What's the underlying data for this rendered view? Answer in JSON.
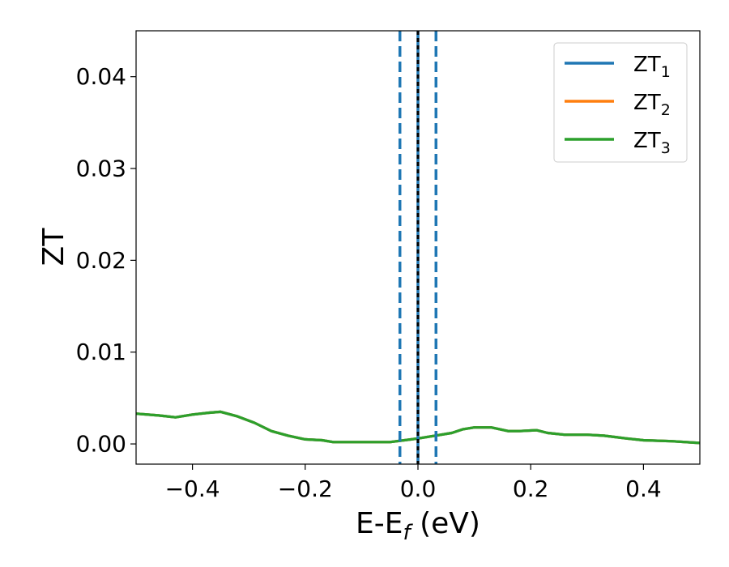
{
  "chart_data": {
    "type": "line",
    "xlabel": "E-E",
    "xlabel_sub": "f",
    "xlabel_unit": " (eV)",
    "ylabel": "ZT",
    "xlim": [
      -0.5,
      0.5
    ],
    "ylim": [
      -0.0022,
      0.045
    ],
    "xticks": [
      -0.4,
      -0.2,
      0.0,
      0.2,
      0.4
    ],
    "xtick_labels": [
      "−0.4",
      "−0.2",
      "0.0",
      "0.2",
      "0.4"
    ],
    "yticks": [
      0.0,
      0.01,
      0.02,
      0.03,
      0.04
    ],
    "ytick_labels": [
      "0.00",
      "0.01",
      "0.02",
      "0.03",
      "0.04"
    ],
    "legend_position": "top-right",
    "series": [
      {
        "name": "ZT",
        "sub": "1",
        "color": "#1f77b4",
        "x": [
          -0.5,
          -0.46,
          -0.43,
          -0.4,
          -0.37,
          -0.35,
          -0.32,
          -0.29,
          -0.26,
          -0.23,
          -0.2,
          -0.17,
          -0.15,
          -0.1,
          -0.05,
          0.0,
          0.03,
          0.06,
          0.08,
          0.1,
          0.13,
          0.16,
          0.18,
          0.21,
          0.23,
          0.26,
          0.3,
          0.33,
          0.37,
          0.4,
          0.45,
          0.5
        ],
        "y": [
          0.0033,
          0.0031,
          0.0029,
          0.0032,
          0.0034,
          0.0035,
          0.003,
          0.0023,
          0.0014,
          0.0009,
          0.0005,
          0.0004,
          0.0002,
          0.0002,
          0.0002,
          0.0006,
          0.0009,
          0.0012,
          0.0016,
          0.0018,
          0.0018,
          0.0014,
          0.0014,
          0.0015,
          0.0012,
          0.001,
          0.001,
          0.0009,
          0.0006,
          0.0004,
          0.0003,
          0.0001
        ]
      },
      {
        "name": "ZT",
        "sub": "2",
        "color": "#ff7f0e",
        "x": [
          -0.5,
          -0.46,
          -0.43,
          -0.4,
          -0.37,
          -0.35,
          -0.32,
          -0.29,
          -0.26,
          -0.23,
          -0.2,
          -0.17,
          -0.15,
          -0.1,
          -0.05,
          0.0,
          0.03,
          0.06,
          0.08,
          0.1,
          0.13,
          0.16,
          0.18,
          0.21,
          0.23,
          0.26,
          0.3,
          0.33,
          0.37,
          0.4,
          0.45,
          0.5
        ],
        "y": [
          0.0033,
          0.0031,
          0.0029,
          0.0032,
          0.0034,
          0.0035,
          0.003,
          0.0023,
          0.0014,
          0.0009,
          0.0005,
          0.0004,
          0.0002,
          0.0002,
          0.0002,
          0.0006,
          0.0009,
          0.0012,
          0.0016,
          0.0018,
          0.0018,
          0.0014,
          0.0014,
          0.0015,
          0.0012,
          0.001,
          0.001,
          0.0009,
          0.0006,
          0.0004,
          0.0003,
          0.0001
        ]
      },
      {
        "name": "ZT",
        "sub": "3",
        "color": "#2ca02c",
        "x": [
          -0.5,
          -0.46,
          -0.43,
          -0.4,
          -0.37,
          -0.35,
          -0.32,
          -0.29,
          -0.26,
          -0.23,
          -0.2,
          -0.17,
          -0.15,
          -0.1,
          -0.05,
          0.0,
          0.03,
          0.06,
          0.08,
          0.1,
          0.13,
          0.16,
          0.18,
          0.21,
          0.23,
          0.26,
          0.3,
          0.33,
          0.37,
          0.4,
          0.45,
          0.5
        ],
        "y": [
          0.0033,
          0.0031,
          0.0029,
          0.0032,
          0.0034,
          0.0035,
          0.003,
          0.0023,
          0.0014,
          0.0009,
          0.0005,
          0.0004,
          0.0002,
          0.0002,
          0.0002,
          0.0006,
          0.0009,
          0.0012,
          0.0016,
          0.0018,
          0.0018,
          0.0014,
          0.0014,
          0.0015,
          0.0012,
          0.001,
          0.001,
          0.0009,
          0.0006,
          0.0004,
          0.0003,
          0.0001
        ]
      }
    ],
    "vlines": [
      {
        "x": -0.032,
        "style": "dashed",
        "color": "#1f77b4"
      },
      {
        "x": 0.0,
        "style": "solid",
        "color": "#1f77b4"
      },
      {
        "x": 0.0,
        "style": "dotted",
        "color": "#000000"
      },
      {
        "x": 0.032,
        "style": "dashed",
        "color": "#1f77b4"
      }
    ]
  }
}
